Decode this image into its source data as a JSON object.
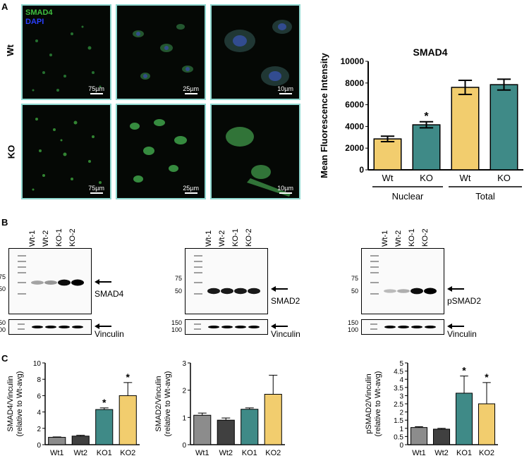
{
  "panels": {
    "a": "A",
    "b": "B",
    "c": "C"
  },
  "panel_a": {
    "legend": {
      "smad4": "SMAD4",
      "dapi": "DAPI",
      "smad4_color": "#3fbf3f",
      "dapi_color": "#2a3fff"
    },
    "rows": [
      "Wt",
      "KO"
    ],
    "scales": [
      "75µm",
      "25µm",
      "10µm"
    ]
  },
  "panel_b": {
    "blots": [
      {
        "lanes": [
          "Wt-1",
          "Wt-2",
          "KO-1",
          "KO-2"
        ],
        "mw": [
          "75",
          "50"
        ],
        "protein": "SMAD4",
        "loading_mw": [
          "150",
          "100"
        ],
        "loading": "Vinculin"
      },
      {
        "lanes": [
          "Wt-1",
          "Wt-2",
          "KO-1",
          "KO-2"
        ],
        "mw": [
          "75",
          "50"
        ],
        "protein": "SMAD2",
        "loading_mw": [
          "150",
          "100"
        ],
        "loading": "Vinculin"
      },
      {
        "lanes": [
          "Wt-1",
          "Wt-2",
          "KO-1",
          "KO-2"
        ],
        "mw": [
          "75",
          "50"
        ],
        "protein": "pSMAD2",
        "loading_mw": [
          "150",
          "100"
        ],
        "loading": "Vinculin"
      }
    ]
  },
  "chart_data": [
    {
      "type": "bar",
      "title": "SMAD4",
      "ylabel": "Mean Fluorescence Intensity",
      "categories": [
        "Wt",
        "KO",
        "Wt",
        "KO"
      ],
      "groups": [
        "Nuclear",
        "Total"
      ],
      "values": [
        2850,
        4150,
        7600,
        7850
      ],
      "errors": [
        250,
        280,
        650,
        500
      ],
      "significant": [
        false,
        true,
        false,
        false
      ],
      "ylim": [
        0,
        10000
      ],
      "yticks": [
        "0",
        "2000",
        "4000",
        "6000",
        "8000",
        "10000"
      ],
      "colors": [
        "#f2cd6e",
        "#3f8a87",
        "#f2cd6e",
        "#3f8a87"
      ]
    },
    {
      "type": "bar",
      "ylabel": "SMAD4/Vinculin (relative to Wt-avg)",
      "categories": [
        "Wt1",
        "Wt2",
        "KO1",
        "KO2"
      ],
      "values": [
        0.9,
        1.05,
        4.3,
        6.0
      ],
      "errors": [
        0.05,
        0.1,
        0.2,
        1.6
      ],
      "significant": [
        false,
        false,
        true,
        true
      ],
      "ylim": [
        0,
        10
      ],
      "yticks": [
        "0",
        "2",
        "4",
        "6",
        "8",
        "10"
      ],
      "colors": [
        "#8c8c8c",
        "#404040",
        "#3f8a87",
        "#f2cd6e"
      ]
    },
    {
      "type": "bar",
      "ylabel": "SMAD2/Vinculin (relative to Wt-avg)",
      "categories": [
        "Wt1",
        "Wt2",
        "KO1",
        "KO2"
      ],
      "values": [
        1.08,
        0.9,
        1.3,
        1.85
      ],
      "errors": [
        0.08,
        0.08,
        0.05,
        0.7
      ],
      "significant": [
        false,
        false,
        false,
        false
      ],
      "ylim": [
        0,
        3
      ],
      "yticks": [
        "0",
        "1",
        "2",
        "3"
      ],
      "colors": [
        "#8c8c8c",
        "#404040",
        "#3f8a87",
        "#f2cd6e"
      ]
    },
    {
      "type": "bar",
      "ylabel": "pSMAD2/Vinculin (relative to Wt-avg)",
      "categories": [
        "Wt1",
        "Wt2",
        "KO1",
        "KO2"
      ],
      "values": [
        1.05,
        0.95,
        3.15,
        2.5
      ],
      "errors": [
        0.05,
        0.05,
        1.05,
        1.3
      ],
      "significant": [
        false,
        false,
        true,
        true
      ],
      "ylim": [
        0,
        5
      ],
      "yticks": [
        "0",
        "0.5",
        "1",
        "1.5",
        "2",
        "2.5",
        "3",
        "3.5",
        "4",
        "4.5",
        "5"
      ],
      "colors": [
        "#8c8c8c",
        "#404040",
        "#3f8a87",
        "#f2cd6e"
      ]
    }
  ]
}
